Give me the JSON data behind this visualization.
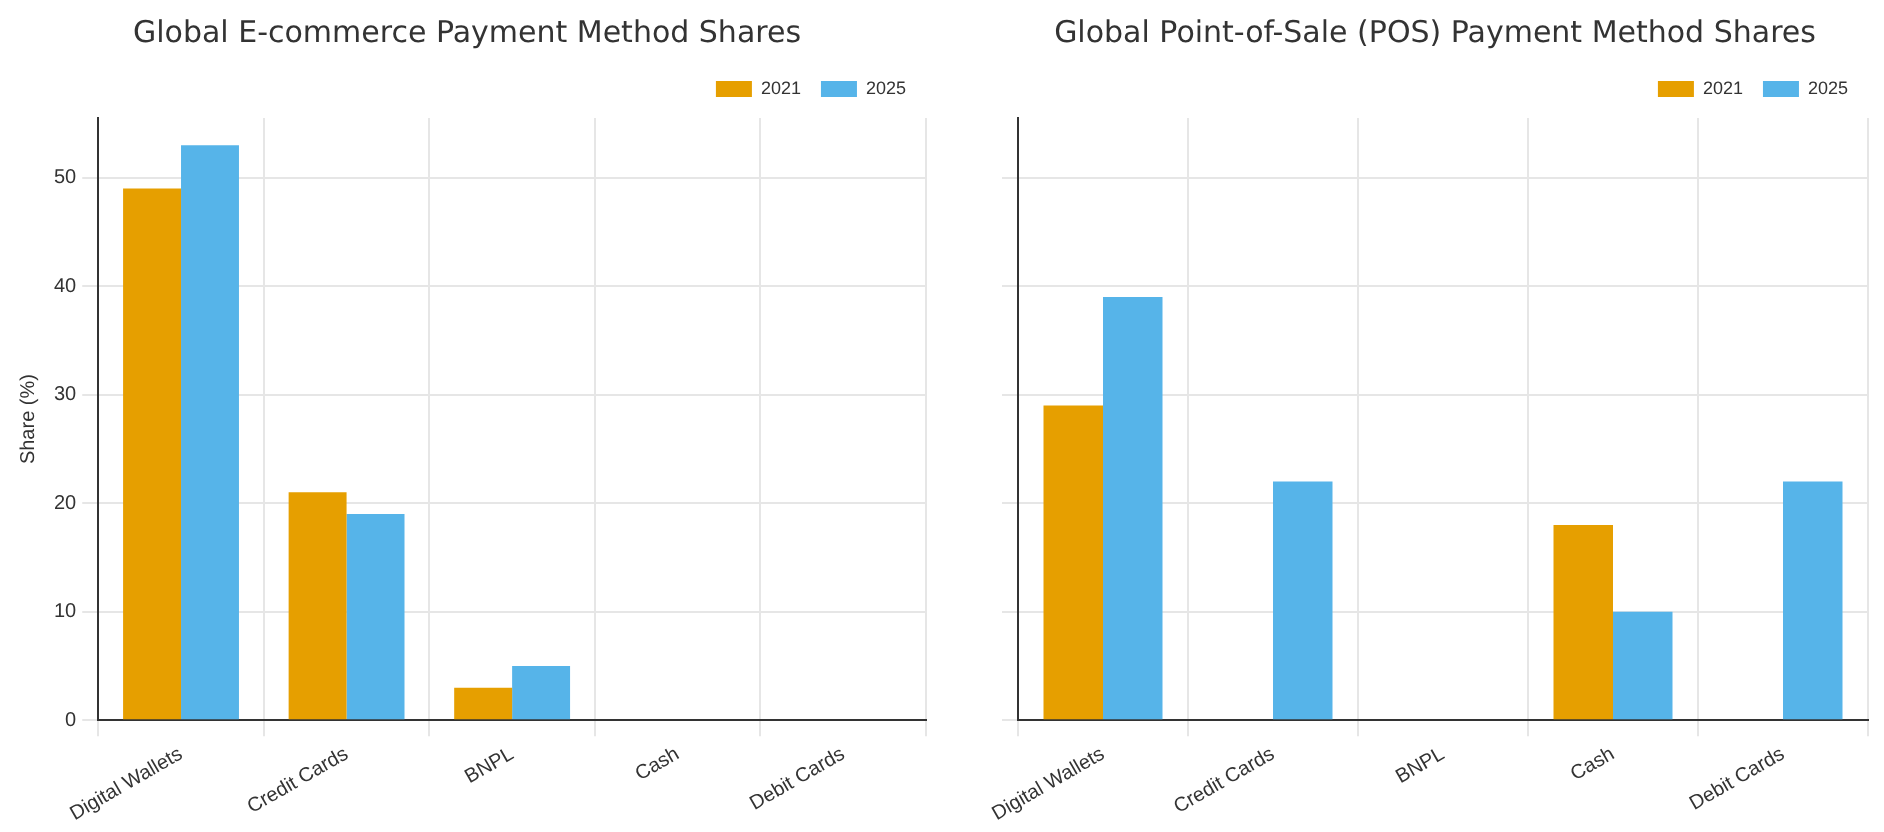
{
  "chart_data": [
    {
      "type": "bar",
      "title": "Global E-commerce Payment Method Shares",
      "ylabel": "Share (%)",
      "categories": [
        "Digital Wallets",
        "Credit Cards",
        "BNPL",
        "Cash",
        "Debit Cards"
      ],
      "series": [
        {
          "name": "2021",
          "color": "#e69f00",
          "values": [
            49,
            21,
            3,
            null,
            null
          ]
        },
        {
          "name": "2025",
          "color": "#56b4e9",
          "values": [
            53,
            19,
            5,
            null,
            null
          ]
        }
      ],
      "ylim": [
        0,
        55.5
      ],
      "yticks": [
        0,
        10,
        20,
        30,
        40,
        50
      ],
      "grid": true,
      "legend": "top right"
    },
    {
      "type": "bar",
      "title": "Global Point-of-Sale (POS) Payment Method Shares",
      "categories": [
        "Digital Wallets",
        "Credit Cards",
        "BNPL",
        "Cash",
        "Debit Cards"
      ],
      "series": [
        {
          "name": "2021",
          "color": "#e69f00",
          "values": [
            29,
            null,
            null,
            18,
            null
          ]
        },
        {
          "name": "2025",
          "color": "#56b4e9",
          "values": [
            39,
            22,
            null,
            10,
            22
          ]
        }
      ],
      "ylim": [
        0,
        55.5
      ],
      "yticks": [
        0,
        10,
        20,
        30,
        40,
        50
      ],
      "grid": true,
      "legend": "top right",
      "tick_labels": "x"
    }
  ]
}
